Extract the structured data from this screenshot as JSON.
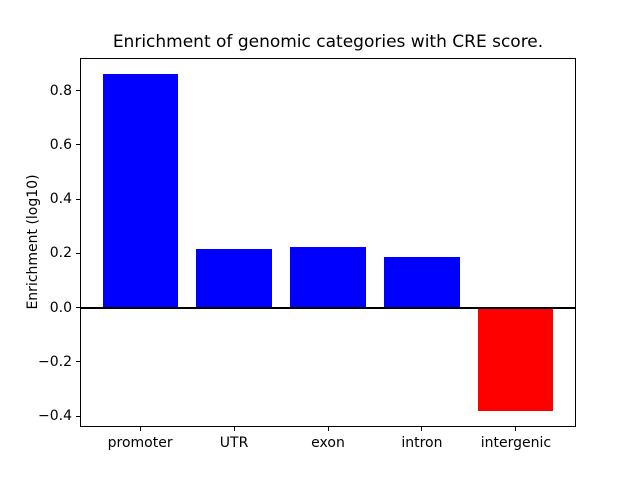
{
  "chart_data": {
    "type": "bar",
    "title": "Enrichment of genomic categories with CRE score.",
    "xlabel": "",
    "ylabel": "Enrichment (log10)",
    "categories": [
      "promoter",
      "UTR",
      "exon",
      "intron",
      "intergenic"
    ],
    "values": [
      0.86,
      0.215,
      0.225,
      0.185,
      -0.38
    ],
    "bar_colors": [
      "#0000ff",
      "#0000ff",
      "#0000ff",
      "#0000ff",
      "#ff0000"
    ],
    "positive_color": "#0000ff",
    "negative_color": "#ff0000",
    "bar_width": 0.8,
    "xlim": [
      -0.64,
      4.64
    ],
    "ylim": [
      -0.44,
      0.92
    ],
    "yticks": [
      0.8,
      0.6,
      0.4,
      0.2,
      0.0,
      -0.2,
      -0.4
    ],
    "ytick_labels": [
      "0.8",
      "0.6",
      "0.4",
      "0.2",
      "0.0",
      "−0.2",
      "−0.4"
    ],
    "grid": false,
    "legend": null,
    "zero_line": true,
    "zero_line_color": "#000000",
    "axis_color": "#000000",
    "background_color": "#ffffff"
  }
}
